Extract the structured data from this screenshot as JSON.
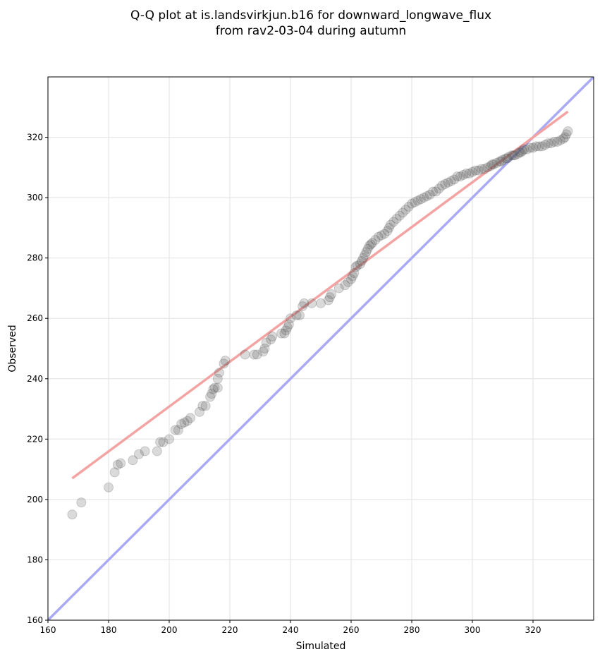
{
  "chart_data": {
    "type": "scatter",
    "title": "Q-Q plot at is.landsvirkjun.b16 for downward_longwave_flux",
    "subtitle": "from rav2-03-04 during autumn",
    "xlabel": "Simulated",
    "ylabel": "Observed",
    "xlim": [
      160,
      340
    ],
    "ylim": [
      160,
      340
    ],
    "xticks": [
      160,
      180,
      200,
      220,
      240,
      260,
      280,
      300,
      320
    ],
    "yticks": [
      160,
      180,
      200,
      220,
      240,
      260,
      280,
      300,
      320
    ],
    "grid": true,
    "point_color": "#555555",
    "fit_line_color": "#f4a3a3",
    "identity_line_color": "#a9a9f5",
    "fit_line": {
      "x": [
        168,
        331.5
      ],
      "y": [
        207,
        328.5
      ]
    },
    "identity_line": {
      "x": [
        160,
        340
      ],
      "y": [
        160,
        340
      ]
    },
    "points": [
      [
        168,
        195
      ],
      [
        171,
        199
      ],
      [
        180,
        204
      ],
      [
        182,
        209
      ],
      [
        183,
        211.5
      ],
      [
        184,
        212
      ],
      [
        188,
        213
      ],
      [
        190,
        215
      ],
      [
        192,
        216
      ],
      [
        196,
        216
      ],
      [
        197,
        219
      ],
      [
        198,
        219
      ],
      [
        200,
        220
      ],
      [
        202,
        223
      ],
      [
        203,
        223
      ],
      [
        204,
        225
      ],
      [
        205,
        225.5
      ],
      [
        206,
        226
      ],
      [
        207,
        227
      ],
      [
        210,
        229
      ],
      [
        211,
        231
      ],
      [
        212,
        231
      ],
      [
        213.5,
        234
      ],
      [
        214,
        235
      ],
      [
        214.5,
        236.5
      ],
      [
        215,
        237
      ],
      [
        216,
        237
      ],
      [
        216,
        240
      ],
      [
        216.5,
        242
      ],
      [
        218,
        245
      ],
      [
        218.5,
        246
      ],
      [
        225,
        248
      ],
      [
        228,
        248
      ],
      [
        229,
        248
      ],
      [
        231,
        249
      ],
      [
        231.5,
        250
      ],
      [
        232,
        252
      ],
      [
        233.5,
        253
      ],
      [
        234,
        254
      ],
      [
        237,
        255
      ],
      [
        238,
        255
      ],
      [
        238.5,
        256
      ],
      [
        239,
        257
      ],
      [
        239.5,
        258
      ],
      [
        240,
        260
      ],
      [
        242,
        261
      ],
      [
        243,
        261
      ],
      [
        244,
        264
      ],
      [
        244.5,
        265
      ],
      [
        247,
        265
      ],
      [
        250,
        265
      ],
      [
        252.5,
        266
      ],
      [
        253,
        267
      ],
      [
        253.5,
        268
      ],
      [
        256,
        270
      ],
      [
        258,
        271
      ],
      [
        259,
        272
      ],
      [
        260,
        273
      ],
      [
        260.5,
        274
      ],
      [
        261,
        275
      ],
      [
        261.5,
        277
      ],
      [
        262,
        277.5
      ],
      [
        263,
        278
      ],
      [
        263.5,
        279
      ],
      [
        264,
        280
      ],
      [
        264.5,
        281
      ],
      [
        265,
        282
      ],
      [
        265.5,
        283
      ],
      [
        266,
        284
      ],
      [
        266.5,
        284.5
      ],
      [
        267,
        285
      ],
      [
        268,
        286
      ],
      [
        269,
        287
      ],
      [
        270,
        287.5
      ],
      [
        271,
        288
      ],
      [
        272,
        289
      ],
      [
        272.5,
        290
      ],
      [
        273,
        291
      ],
      [
        274,
        292
      ],
      [
        275,
        293
      ],
      [
        276,
        294
      ],
      [
        277,
        295
      ],
      [
        278,
        296
      ],
      [
        279,
        297
      ],
      [
        280,
        298
      ],
      [
        281,
        298.5
      ],
      [
        282,
        299
      ],
      [
        283,
        299.5
      ],
      [
        284,
        300
      ],
      [
        285,
        300.5
      ],
      [
        286,
        301
      ],
      [
        287,
        302
      ],
      [
        288,
        302
      ],
      [
        289,
        303
      ],
      [
        290,
        304
      ],
      [
        291,
        304.5
      ],
      [
        292,
        305
      ],
      [
        293,
        305.5
      ],
      [
        294,
        306
      ],
      [
        295,
        307
      ],
      [
        296,
        307
      ],
      [
        297,
        307.5
      ],
      [
        298,
        308
      ],
      [
        299,
        308
      ],
      [
        300,
        308.5
      ],
      [
        301,
        309
      ],
      [
        302,
        309
      ],
      [
        303,
        309.5
      ],
      [
        304,
        309.5
      ],
      [
        305,
        310
      ],
      [
        306,
        310.5
      ],
      [
        306.5,
        311
      ],
      [
        307,
        311
      ],
      [
        308,
        311.5
      ],
      [
        309,
        312
      ],
      [
        309.5,
        312
      ],
      [
        310,
        312.5
      ],
      [
        311,
        313
      ],
      [
        311.5,
        313
      ],
      [
        312,
        313.5
      ],
      [
        313,
        314
      ],
      [
        313.5,
        314
      ],
      [
        314,
        314
      ],
      [
        315,
        314.5
      ],
      [
        315.5,
        315
      ],
      [
        316,
        315
      ],
      [
        316.5,
        315.5
      ],
      [
        317,
        316
      ],
      [
        318,
        316
      ],
      [
        319,
        316.5
      ],
      [
        320,
        316.5
      ],
      [
        321,
        317
      ],
      [
        322,
        317
      ],
      [
        323,
        317
      ],
      [
        324,
        317.5
      ],
      [
        325,
        318
      ],
      [
        326,
        318
      ],
      [
        327,
        318.5
      ],
      [
        328,
        318.5
      ],
      [
        329,
        319
      ],
      [
        330,
        319.5
      ],
      [
        330.5,
        320
      ],
      [
        331,
        321
      ],
      [
        331.5,
        322
      ]
    ]
  }
}
